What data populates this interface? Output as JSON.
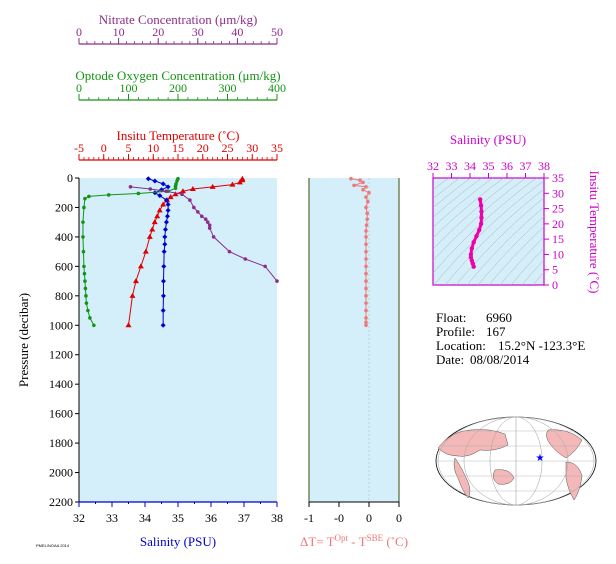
{
  "chart_data": [
    {
      "type": "line",
      "title": "",
      "ylabel": "Pressure (decibar)",
      "y_ticks": [
        0,
        200,
        400,
        600,
        800,
        1000,
        1200,
        1400,
        1600,
        1800,
        2000,
        2200
      ],
      "ylim": [
        0,
        2200
      ],
      "axes": [
        {
          "label": "Nitrate Concentration (μm/kg)",
          "color": "#8b2d8b",
          "ticks": [
            0,
            10,
            20,
            30,
            40,
            50
          ],
          "range": [
            0,
            50
          ]
        },
        {
          "label": "Optode Oxygen Concentration (μm/kg)",
          "color": "#149414",
          "ticks": [
            0,
            100,
            200,
            300,
            400
          ],
          "range": [
            0,
            400
          ]
        },
        {
          "label": "Insitu Temperature (˚C)",
          "color": "#e00000",
          "ticks": [
            -5,
            0,
            5,
            10,
            15,
            20,
            25,
            30,
            35
          ],
          "range": [
            -5,
            35
          ]
        },
        {
          "label": "Salinity (PSU)",
          "color": "#0000cc",
          "ticks": [
            32,
            33,
            34,
            35,
            36,
            37,
            38
          ],
          "range": [
            32,
            38
          ]
        }
      ],
      "series": [
        {
          "variable": "temperature",
          "color": "#e00000",
          "marker": "triangle",
          "x": [
            28,
            28,
            27.5,
            26,
            22,
            18,
            16,
            14.5,
            13.5,
            12.8,
            12,
            11.3,
            10.8,
            10.3,
            9.8,
            9.3,
            8.5,
            7.5,
            6.5,
            5.8,
            5
          ],
          "y": [
            5,
            15,
            30,
            45,
            60,
            75,
            90,
            110,
            130,
            150,
            180,
            220,
            260,
            300,
            350,
            400,
            500,
            600,
            700,
            800,
            1000
          ]
        },
        {
          "variable": "salinity",
          "color": "#0000cc",
          "marker": "diamond",
          "x": [
            34.1,
            34.3,
            34.55,
            34.7,
            34.5,
            34.3,
            34.45,
            34.65,
            34.7,
            34.7,
            34.68,
            34.65,
            34.62,
            34.6,
            34.6,
            34.58,
            34.57,
            34.56,
            34.56,
            34.55,
            34.55
          ],
          "y": [
            5,
            20,
            40,
            60,
            80,
            100,
            120,
            150,
            180,
            220,
            260,
            300,
            350,
            400,
            450,
            500,
            600,
            700,
            800,
            900,
            1000
          ]
        },
        {
          "variable": "oxygen",
          "color": "#149414",
          "marker": "circle",
          "x": [
            200,
            198,
            196,
            195,
            195,
            180,
            120,
            60,
            20,
            12,
            10,
            8,
            8,
            9,
            10,
            11,
            12,
            13,
            14,
            15,
            18,
            22,
            30
          ],
          "y": [
            5,
            20,
            40,
            55,
            70,
            90,
            105,
            115,
            125,
            140,
            200,
            300,
            400,
            500,
            600,
            650,
            700,
            750,
            800,
            850,
            900,
            950,
            1000
          ]
        },
        {
          "variable": "nitrate",
          "color": "#8b2d8b",
          "marker": "circle",
          "x": [
            13,
            18,
            22,
            26,
            28,
            29,
            30,
            31,
            32,
            32.5,
            33,
            33,
            34,
            38,
            42,
            47,
            50
          ],
          "y": [
            60,
            75,
            90,
            110,
            150,
            200,
            230,
            260,
            280,
            300,
            320,
            340,
            400,
            500,
            550,
            600,
            700
          ]
        }
      ]
    },
    {
      "type": "line",
      "xlabel": "ΔT= T",
      "xlabel_sup1": "Opt",
      "xlabel_mid": " - T",
      "xlabel_sup2": "SBE",
      "xlabel_unit": " (˚C)",
      "x_ticks": [
        -1,
        -0.5,
        0,
        0.5
      ],
      "x_tick_labels": [
        "-1",
        "-0",
        "0",
        "0"
      ],
      "xlim": [
        -1,
        0.5
      ],
      "ylim": [
        0,
        2200
      ],
      "series": [
        {
          "name": "",
          "color": "#f07878",
          "x": [
            -0.3,
            -0.15,
            -0.1,
            -0.25,
            -0.05,
            -0.1,
            0,
            -0.05,
            -0.02,
            -0.05,
            -0.03,
            -0.03,
            -0.04,
            -0.05,
            -0.05,
            -0.05,
            -0.05,
            -0.05,
            -0.05,
            -0.05,
            -0.05,
            -0.05,
            -0.05,
            -0.05,
            -0.05,
            -0.05,
            -0.05,
            -0.05
          ],
          "y": [
            5,
            15,
            30,
            50,
            60,
            80,
            100,
            130,
            160,
            200,
            240,
            280,
            320,
            360,
            400,
            450,
            500,
            550,
            600,
            650,
            700,
            750,
            800,
            850,
            900,
            950,
            980,
            1000
          ]
        }
      ]
    },
    {
      "type": "line",
      "title": "Salinity (PSU)",
      "ylabel": "Insitu Temperature (˚C)",
      "x_ticks": [
        32,
        33,
        34,
        35,
        36,
        37,
        38
      ],
      "y_ticks": [
        0,
        5,
        10,
        15,
        20,
        25,
        30,
        35
      ],
      "xlim": [
        32,
        38
      ],
      "ylim": [
        0,
        35
      ],
      "series": [
        {
          "name": "",
          "color": "#ee00aa",
          "x": [
            34.55,
            34.6,
            34.62,
            34.62,
            34.6,
            34.5,
            34.35,
            34.2,
            34.1,
            34.05,
            34.05,
            34.1,
            34.15,
            34.2
          ],
          "y": [
            28,
            26,
            24,
            22,
            20,
            18,
            16,
            14,
            12,
            10,
            9,
            8,
            7,
            6
          ]
        }
      ]
    }
  ],
  "info": {
    "float_label": "Float:",
    "float_value": "6960",
    "profile_label": "Profile:",
    "profile_value": "167",
    "location_label": "Location:",
    "location_value": "15.2°N  -123.3°E",
    "date_label": "Date:",
    "date_value": "08/08/2014"
  },
  "footer_note": "PMEL/NOAA 2014"
}
